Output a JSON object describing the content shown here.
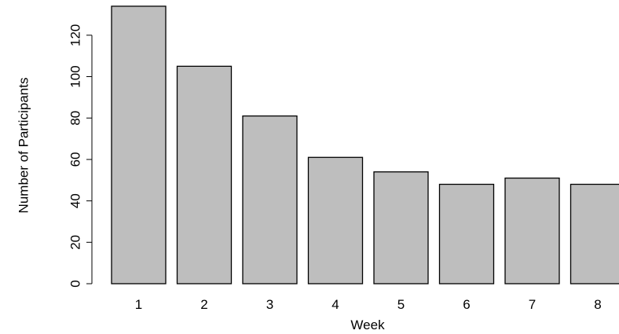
{
  "chart_data": {
    "type": "bar",
    "title": "",
    "xlabel": "Week",
    "ylabel": "Number of Participants",
    "categories": [
      "1",
      "2",
      "3",
      "4",
      "5",
      "6",
      "7",
      "8"
    ],
    "values": [
      134,
      105,
      81,
      61,
      54,
      48,
      51,
      48
    ],
    "ylim": [
      0,
      134
    ],
    "yticks": [
      "0",
      "20",
      "40",
      "60",
      "80",
      "100",
      "120"
    ],
    "bar_color": "#bebebe",
    "bar_border_color": "#000000",
    "grid": false,
    "legend": "none"
  }
}
